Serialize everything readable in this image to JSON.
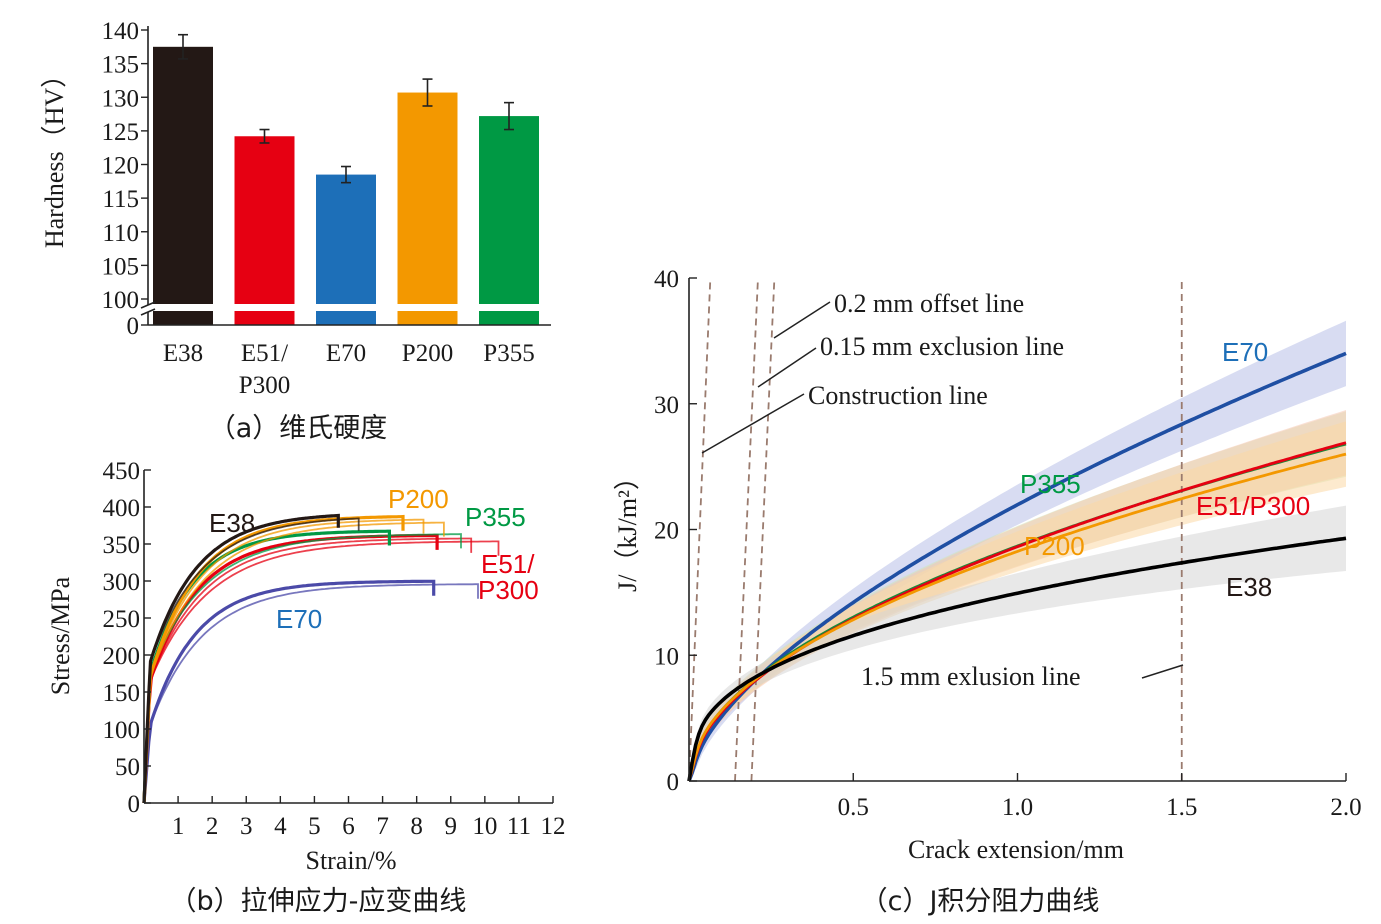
{
  "chart_data": [
    {
      "type": "bar",
      "caption": "（a）维氏硬度",
      "ylabel": "Hardness（HV）",
      "yticks": [
        "140",
        "135",
        "130",
        "125",
        "120",
        "115",
        "110",
        "105",
        "100",
        "0"
      ],
      "ylim": [
        100,
        140
      ],
      "axis_break": true,
      "categories": [
        {
          "line1": "E38",
          "line2": ""
        },
        {
          "line1": "E51/",
          "line2": "P300"
        },
        {
          "line1": "E70",
          "line2": ""
        },
        {
          "line1": "P200",
          "line2": ""
        },
        {
          "line1": "P355",
          "line2": ""
        }
      ],
      "values": [
        137.5,
        124.2,
        118.5,
        130.7,
        127.2
      ],
      "errors": [
        1.8,
        1.0,
        1.2,
        2.0,
        2.0
      ],
      "colors": [
        "#231815",
        "#e60012",
        "#1d6fb8",
        "#f39800",
        "#009944"
      ]
    },
    {
      "type": "line",
      "caption": "（b）拉伸应力-应变曲线",
      "xlabel": "Strain/%",
      "ylabel": "Stress/MPa",
      "xticks": [
        "1",
        "2",
        "3",
        "4",
        "5",
        "6",
        "7",
        "8",
        "9",
        "10",
        "11",
        "12"
      ],
      "yticks": [
        "450",
        "400",
        "350",
        "300",
        "250",
        "200",
        "150",
        "100",
        "50",
        "0"
      ],
      "xlim": [
        0,
        12
      ],
      "ylim": [
        0,
        450
      ],
      "series": [
        {
          "name": "E38",
          "color": "#231815",
          "label_color": "#231815",
          "yield": 190,
          "uts": 392,
          "k": 0.55,
          "xmax": [
            5.7,
            6.3
          ],
          "kinks": [
            6.1,
            6.3
          ]
        },
        {
          "name": "P200",
          "color": "#f39800",
          "label_color": "#f39800",
          "yield": 170,
          "uts": 388,
          "k": 0.42,
          "xmax": [
            7.6,
            8.2,
            8.8
          ],
          "kinks": [
            7.4,
            8.1,
            8.8
          ]
        },
        {
          "name": "P355",
          "color": "#009944",
          "label_color": "#009944",
          "yield": 175,
          "uts": 368,
          "k": 0.4,
          "xmax": [
            7.2,
            9.3
          ],
          "kinks": [
            9.1
          ]
        },
        {
          "name": "E51/P300",
          "color": "#e60012",
          "label_color": "#e60012",
          "yield": 165,
          "uts": 362,
          "k": 0.38,
          "xmax": [
            8.6,
            9.6,
            10.4
          ],
          "kinks": [
            9.6,
            10.3
          ]
        },
        {
          "name": "E70",
          "color": "#4b4aa8",
          "label_color": "#1d6fb8",
          "yield": 105,
          "uts": 300,
          "k": 0.36,
          "xmax": [
            8.5,
            9.8
          ],
          "kinks": [
            8.5,
            8.8
          ]
        }
      ],
      "labels": {
        "E38": "E38",
        "P200": "P200",
        "P355": "P355",
        "E51_l1": "E51/",
        "E51_l2": "P300",
        "E70": "E70"
      }
    },
    {
      "type": "line",
      "caption": "（c）J积分阻力曲线",
      "xlabel": "Crack extension/mm",
      "ylabel": "J/（kJ/m²）",
      "xticks": [
        "0.5",
        "1.0",
        "1.5",
        "2.0"
      ],
      "yticks": [
        "40",
        "30",
        "20",
        "10",
        "0"
      ],
      "xlim": [
        0,
        2.0
      ],
      "ylim": [
        0,
        40
      ],
      "series": [
        {
          "name": "E70",
          "color": "#1f4fa3",
          "band": "#b8c0e8",
          "j_at_2": 34,
          "exp": 0.63,
          "j_at_01": 8.2
        },
        {
          "name": "P355",
          "color": "#1a8a3a",
          "band": "#cfe6b8",
          "j_at_2": 26.8,
          "exp": 0.52,
          "j_at_01": 8.0
        },
        {
          "name": "E51/P300",
          "color": "#e60012",
          "band": "#f6c7b0",
          "j_at_2": 26.9,
          "exp": 0.53,
          "j_at_01": 7.9
        },
        {
          "name": "P200",
          "color": "#f39800",
          "band": "#fbd9a6",
          "j_at_2": 26.0,
          "exp": 0.51,
          "j_at_01": 7.9
        },
        {
          "name": "E38",
          "color": "#000000",
          "band": "#d6d6d6",
          "j_at_2": 19.3,
          "exp": 0.37,
          "j_at_01": 7.7
        }
      ],
      "reference_lines": {
        "offset_02": "0.2 mm offset line",
        "exclusion_015": "0.15 mm exclusion line",
        "construction": "Construction line",
        "exclusion_15": "1.5 mm exlusion line"
      },
      "labels": {
        "E70": "E70",
        "P355": "P355",
        "E51": "E51/P300",
        "P200": "P200",
        "E38": "E38"
      },
      "label_colors": {
        "E70": "#1d6fb8",
        "P355": "#009944",
        "E51": "#e60012",
        "P200": "#f39800",
        "E38": "#231815"
      }
    }
  ]
}
